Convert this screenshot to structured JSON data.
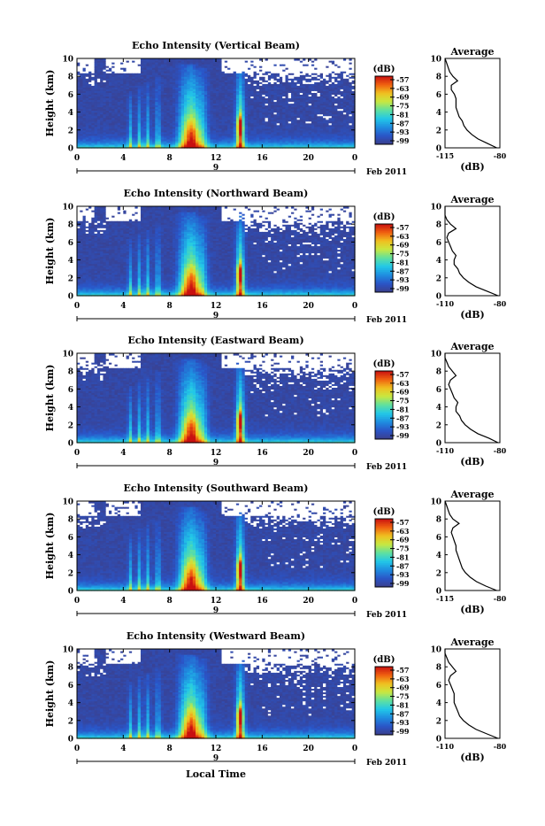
{
  "chart_data": [
    {
      "type": "heatmap",
      "title": "Echo Intensity (Vertical Beam)",
      "ylabel": "Height (km)",
      "ylim": [
        0,
        10
      ],
      "yticks": [
        "0",
        "2",
        "4",
        "6",
        "8",
        "10"
      ],
      "xlim": [
        0,
        24
      ],
      "xticks": [
        "0",
        "4",
        "8",
        "12",
        "16",
        "20",
        "0"
      ],
      "date_marker": "9",
      "date_label": "Feb 2011",
      "colorbar": {
        "unit": "(dB)",
        "ticks": [
          "-57",
          "-63",
          "-69",
          "-75",
          "-81",
          "-87",
          "-93",
          "-99"
        ]
      },
      "profile": {
        "title": "Average",
        "xlabel": "(dB)",
        "xlim": [
          -115,
          -80
        ],
        "xticks": [
          "-115",
          "-80"
        ],
        "heights": [
          0,
          0.5,
          1,
          1.5,
          2,
          2.5,
          3,
          3.5,
          4,
          4.5,
          5,
          5.5,
          6,
          6.5,
          7,
          7.5,
          8,
          8.5,
          9,
          9.5,
          10
        ],
        "values": [
          -82,
          -88,
          -94,
          -98,
          -101,
          -103,
          -104,
          -106,
          -107,
          -108,
          -108,
          -108,
          -109,
          -111,
          -111,
          -107,
          -110,
          -112,
          -113,
          -114,
          -115
        ]
      }
    },
    {
      "type": "heatmap",
      "title": "Echo Intensity (Northward Beam)",
      "ylabel": "Height (km)",
      "ylim": [
        0,
        10
      ],
      "yticks": [
        "0",
        "2",
        "4",
        "6",
        "8",
        "10"
      ],
      "xlim": [
        0,
        24
      ],
      "xticks": [
        "0",
        "4",
        "8",
        "12",
        "16",
        "20",
        "0"
      ],
      "date_marker": "9",
      "date_label": "Feb 2011",
      "colorbar": {
        "unit": "(dB)",
        "ticks": [
          "-57",
          "-63",
          "-69",
          "-75",
          "-81",
          "-87",
          "-93",
          "-99"
        ]
      },
      "profile": {
        "title": "Average",
        "xlabel": "(dB)",
        "xlim": [
          -110,
          -80
        ],
        "xticks": [
          "-110",
          "-80"
        ],
        "heights": [
          0,
          0.5,
          1,
          1.5,
          2,
          2.5,
          3,
          3.5,
          4,
          4.5,
          5,
          5.5,
          6,
          6.5,
          7,
          7.5,
          8,
          8.5,
          9,
          9.5,
          10
        ],
        "values": [
          -81,
          -87,
          -93,
          -97,
          -100,
          -102,
          -103,
          -105,
          -105,
          -104,
          -106,
          -107,
          -108,
          -109,
          -108,
          -104,
          -107,
          -109,
          -110,
          -110,
          -110
        ]
      }
    },
    {
      "type": "heatmap",
      "title": "Echo Intensity (Eastward Beam)",
      "ylabel": "Height (km)",
      "ylim": [
        0,
        10
      ],
      "yticks": [
        "0",
        "2",
        "4",
        "6",
        "8",
        "10"
      ],
      "xlim": [
        0,
        24
      ],
      "xticks": [
        "0",
        "4",
        "8",
        "12",
        "16",
        "20",
        "0"
      ],
      "date_marker": "9",
      "date_label": "Feb 2011",
      "colorbar": {
        "unit": "(dB)",
        "ticks": [
          "-57",
          "-63",
          "-69",
          "-75",
          "-81",
          "-87",
          "-93",
          "-99"
        ]
      },
      "profile": {
        "title": "Average",
        "xlabel": "(dB)",
        "xlim": [
          -110,
          -80
        ],
        "xticks": [
          "-110",
          "-80"
        ],
        "heights": [
          0,
          0.5,
          1,
          1.5,
          2,
          2.5,
          3,
          3.5,
          4,
          4.5,
          5,
          5.5,
          6,
          6.5,
          7,
          7.5,
          8,
          8.5,
          9,
          9.5,
          10
        ],
        "values": [
          -81,
          -86,
          -92,
          -96,
          -99,
          -101,
          -102,
          -104,
          -104,
          -103,
          -105,
          -106,
          -107,
          -108,
          -107,
          -104,
          -106,
          -108,
          -109,
          -110,
          -110
        ]
      }
    },
    {
      "type": "heatmap",
      "title": "Echo Intensity (Southward Beam)",
      "ylabel": "Height (km)",
      "ylim": [
        0,
        10
      ],
      "yticks": [
        "0",
        "2",
        "4",
        "6",
        "8",
        "10"
      ],
      "xlim": [
        0,
        24
      ],
      "xticks": [
        "0",
        "4",
        "8",
        "12",
        "16",
        "20",
        "0"
      ],
      "date_marker": "9",
      "date_label": "Feb 2011",
      "colorbar": {
        "unit": "(dB)",
        "ticks": [
          "-57",
          "-63",
          "-69",
          "-75",
          "-81",
          "-87",
          "-93",
          "-99"
        ]
      },
      "profile": {
        "title": "Average",
        "xlabel": "(dB)",
        "xlim": [
          -115,
          -80
        ],
        "xticks": [
          "-115",
          "-80"
        ],
        "heights": [
          0,
          0.5,
          1,
          1.5,
          2,
          2.5,
          3,
          3.5,
          4,
          4.5,
          5,
          5.5,
          6,
          6.5,
          7,
          7.5,
          8,
          8.5,
          9,
          9.5,
          10
        ],
        "values": [
          -82,
          -89,
          -95,
          -99,
          -102,
          -104,
          -105,
          -106,
          -107,
          -108,
          -108,
          -109,
          -110,
          -111,
          -110,
          -106,
          -110,
          -112,
          -113,
          -114,
          -115
        ]
      }
    },
    {
      "type": "heatmap",
      "title": "Echo Intensity (Westward Beam)",
      "ylabel": "Height (km)",
      "ylim": [
        0,
        10
      ],
      "yticks": [
        "0",
        "2",
        "4",
        "6",
        "8",
        "10"
      ],
      "xlim": [
        0,
        24
      ],
      "xticks": [
        "0",
        "4",
        "8",
        "12",
        "16",
        "20",
        "0"
      ],
      "xlabel": "Local Time",
      "date_marker": "9",
      "date_label": "Feb 2011",
      "colorbar": {
        "unit": "(dB)",
        "ticks": [
          "-57",
          "-63",
          "-69",
          "-75",
          "-81",
          "-87",
          "-93",
          "-99"
        ]
      },
      "profile": {
        "title": "Average",
        "xlabel": "(dB)",
        "xlim": [
          -110,
          -80
        ],
        "xticks": [
          "-110",
          "-80"
        ],
        "heights": [
          0,
          0.5,
          1,
          1.5,
          2,
          2.5,
          3,
          3.5,
          4,
          4.5,
          5,
          5.5,
          6,
          6.5,
          7,
          7.5,
          8,
          8.5,
          9,
          9.5,
          10
        ],
        "values": [
          -81,
          -87,
          -93,
          -97,
          -100,
          -102,
          -103,
          -104,
          -105,
          -105,
          -105,
          -106,
          -107,
          -108,
          -107,
          -104,
          -106,
          -108,
          -109,
          -110,
          -110
        ]
      }
    }
  ],
  "palette": {
    "background_low": "#3b3f8c",
    "colormap": [
      "#3b3f8c",
      "#2a55c8",
      "#1f8ee0",
      "#22c8e8",
      "#5fe0a0",
      "#c8e840",
      "#f0c020",
      "#f06010",
      "#c81010"
    ]
  }
}
